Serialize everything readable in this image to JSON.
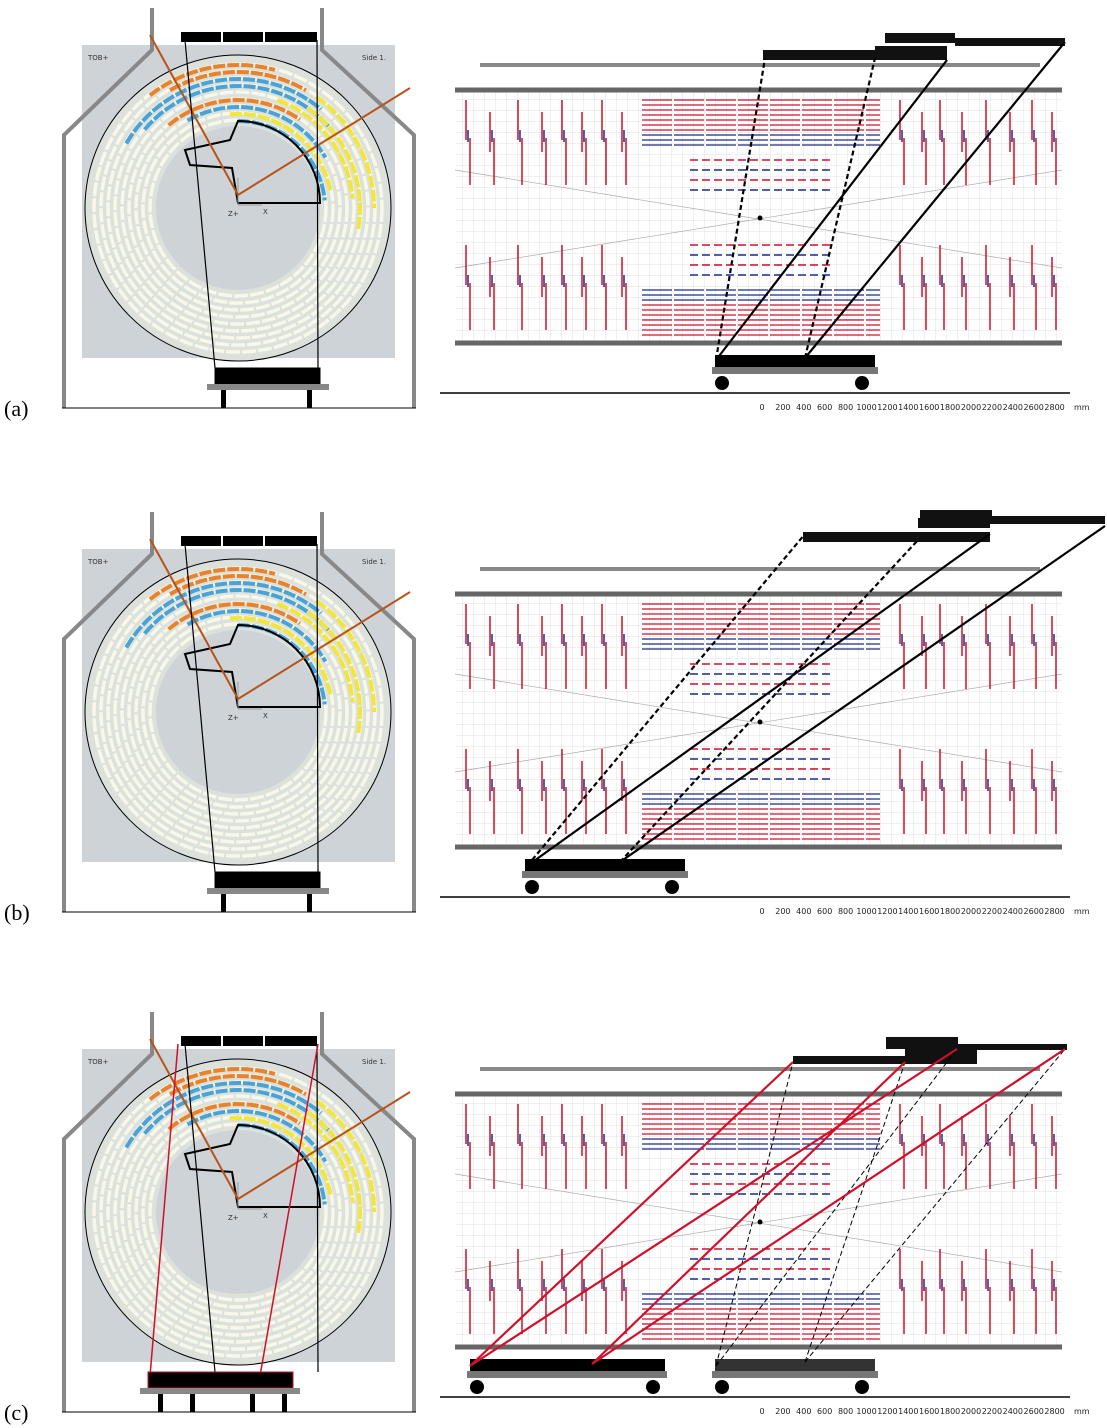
{
  "panels": [
    {
      "label": "(a)",
      "tag": "TOB+",
      "side": "Side 1.",
      "z": "Z+",
      "x": "X",
      "scale": {
        "ticks": [
          0,
          200,
          400,
          600,
          800,
          1000,
          1200,
          1400,
          1600,
          1800,
          2000,
          2200,
          2400,
          2600,
          2800
        ],
        "unit": "mm"
      }
    },
    {
      "label": "(b)",
      "tag": "TOB+",
      "side": "Side 1.",
      "z": "Z+",
      "x": "X",
      "scale": {
        "ticks": [
          0,
          200,
          400,
          600,
          800,
          1000,
          1200,
          1400,
          1600,
          1800,
          2000,
          2200,
          2400,
          2600,
          2800
        ],
        "unit": "mm"
      }
    },
    {
      "label": "(c)",
      "tag": "TOB+",
      "side": "Side 1.",
      "z": "Z+",
      "x": "X",
      "scale": {
        "ticks": [
          0,
          200,
          400,
          600,
          800,
          1000,
          1200,
          1400,
          1600,
          1800,
          2000,
          2200,
          2400,
          2600,
          2800
        ],
        "unit": "mm"
      }
    }
  ]
}
